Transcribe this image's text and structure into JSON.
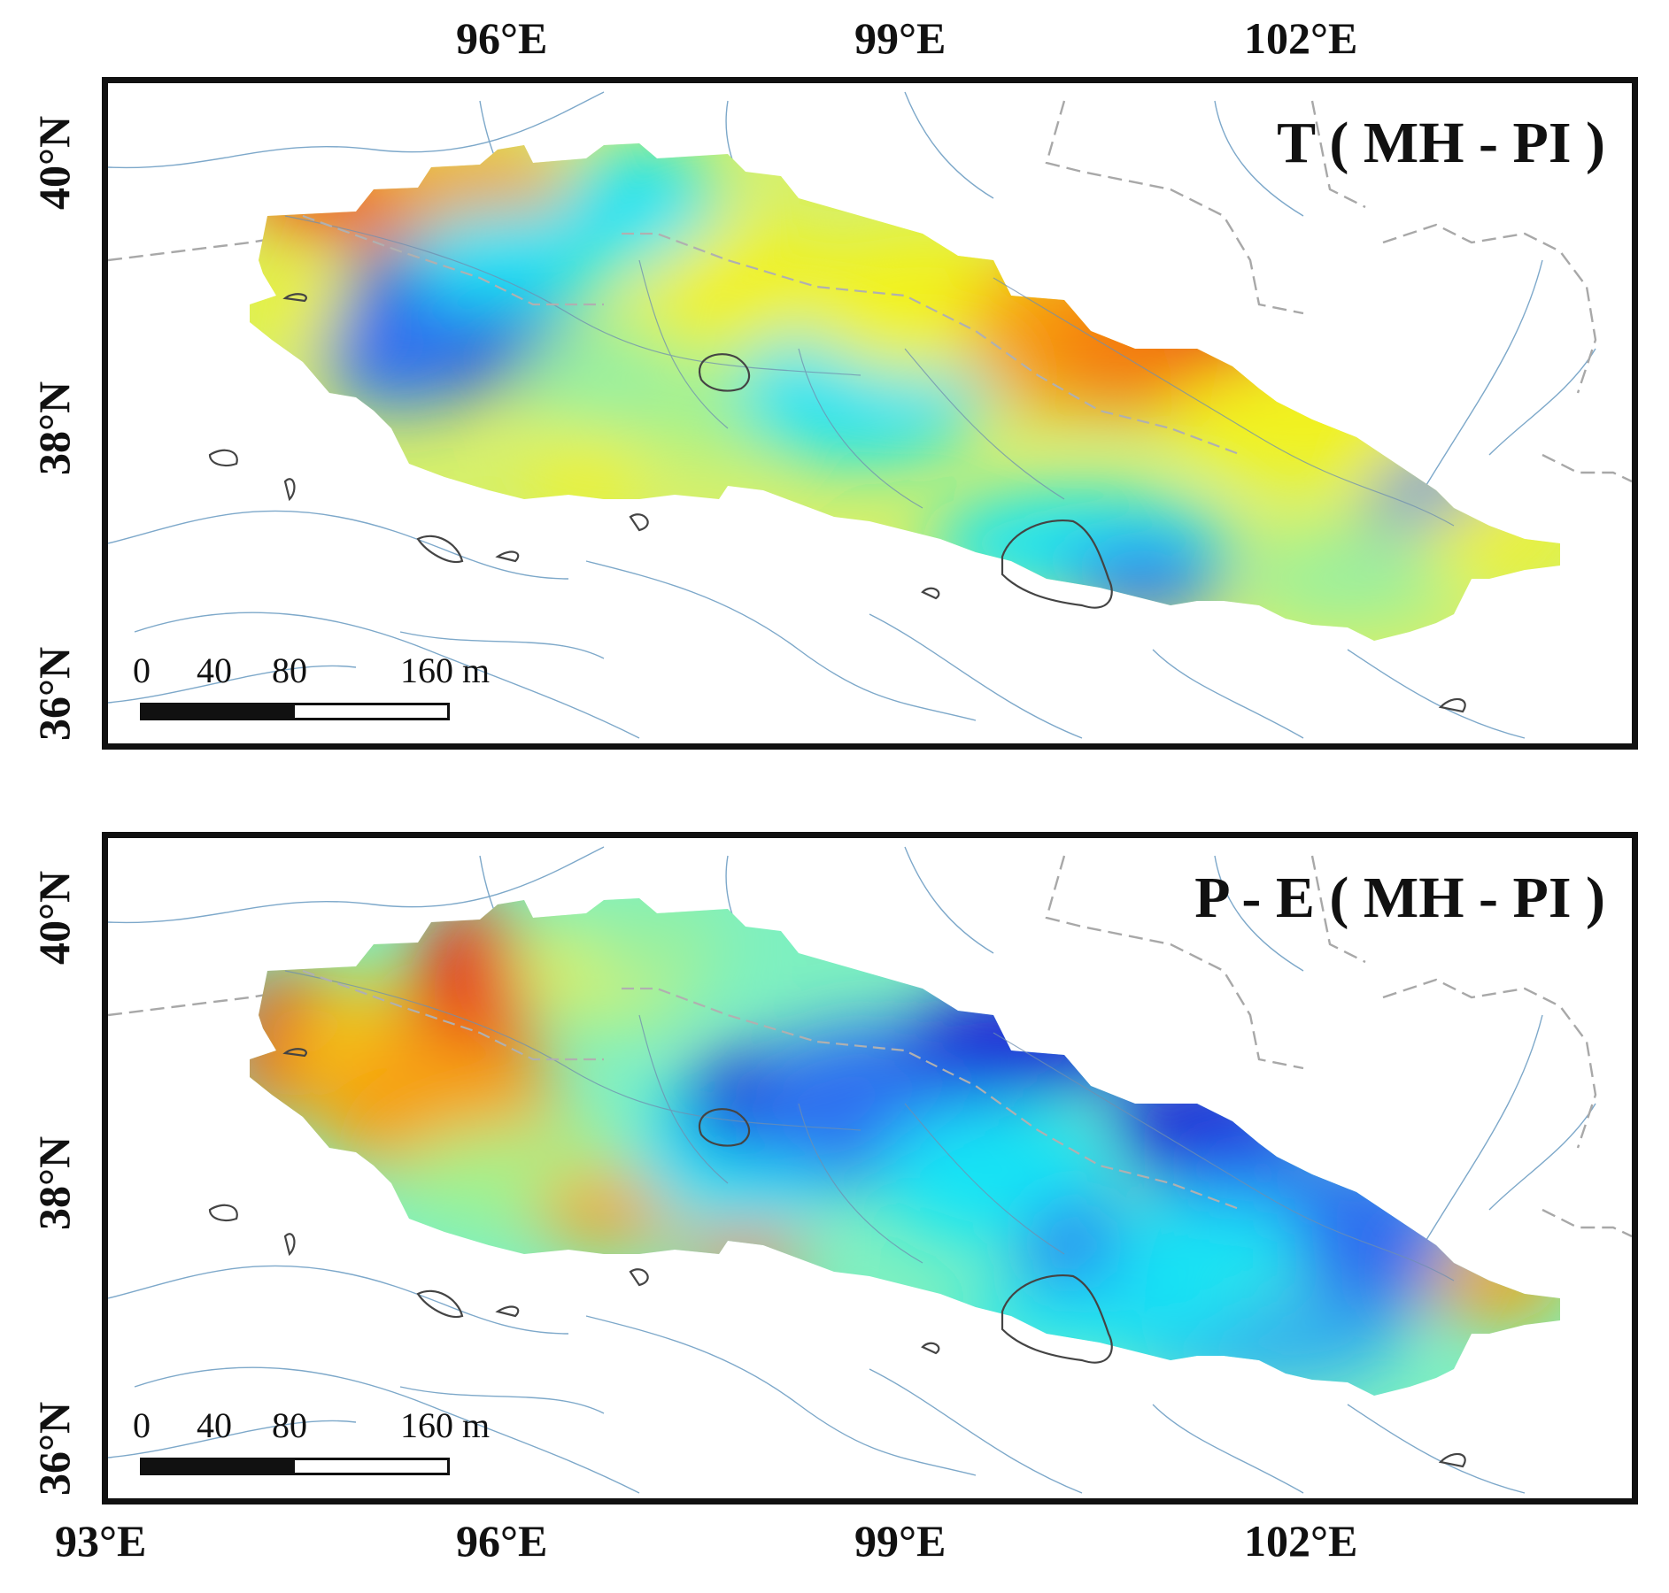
{
  "top_lon_labels": [
    "96°E",
    "99°E",
    "102°E"
  ],
  "bottom_lon_labels": [
    "93°E",
    "96°E",
    "99°E",
    "102°E"
  ],
  "lat_labels": [
    "40°N",
    "38°N",
    "36°N"
  ],
  "panels": [
    {
      "title": "T ( MH - PI )",
      "variable": "temperature difference",
      "scale": {
        "ticks": [
          "0",
          "40",
          "80",
          "160 m"
        ]
      }
    },
    {
      "title": "P - E ( MH - PI )",
      "variable": "precipitation minus evaporation difference",
      "scale": {
        "ticks": [
          "0",
          "40",
          "80",
          "160 m"
        ]
      }
    }
  ],
  "colors": {
    "frame": "#111111",
    "river": "#6f9fc4",
    "border": "#9e9e9e",
    "lake": "#444444",
    "ramp": [
      "#1e22d8",
      "#2f6ff0",
      "#19e3f5",
      "#98f0a0",
      "#f2f21c",
      "#f7b00e",
      "#f25612",
      "#e8161a"
    ]
  }
}
